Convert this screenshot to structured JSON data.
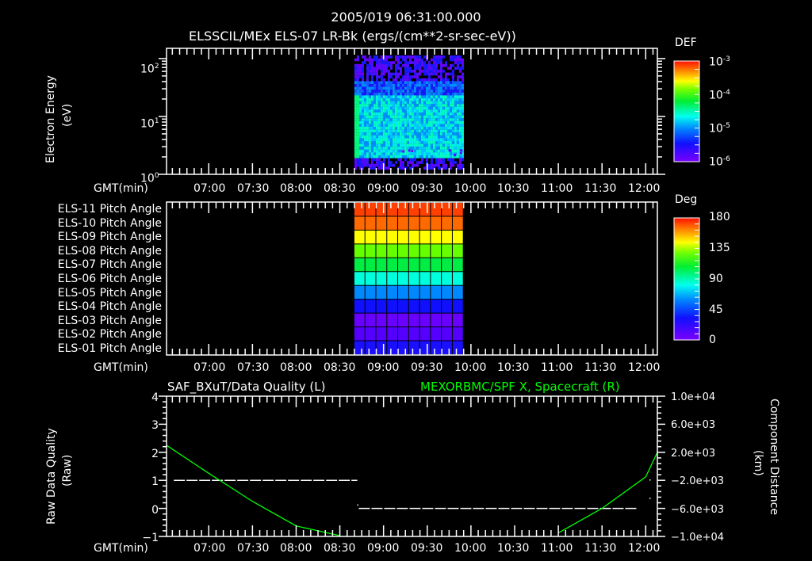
{
  "header": {
    "timestamp": "2005/019 06:31:00.000",
    "title": "ELSSCIL/MEx ELS-07 LR-Bk  (ergs/(cm**2-sr-sec-eV))"
  },
  "chart_data": [
    {
      "type": "heatmap",
      "title": "ELSSCIL/MEx ELS-07 LR-Bk  (ergs/(cm**2-sr-sec-eV))",
      "xlabel": "GMT(min)",
      "ylabel": "Electron Energy (eV)",
      "yscale": "log",
      "ylim": [
        1,
        150
      ],
      "yticks": [
        "10^0",
        "10^1",
        "10^2"
      ],
      "xticks": [
        "07:00",
        "07:30",
        "08:00",
        "08:30",
        "09:00",
        "09:30",
        "10:00",
        "10:30",
        "11:00",
        "11:30",
        "12:00"
      ],
      "data_time_range": [
        "08:40",
        "09:55"
      ],
      "data_energy_range_eV": [
        2.5,
        150
      ],
      "colorbar": {
        "label": "DEF",
        "scale": "log",
        "range": [
          1e-06,
          0.001
        ],
        "ticks": [
          "10^-3",
          "10^-4",
          "10^-5",
          "10^-6"
        ]
      },
      "dominant_level": "~1e-5 (cyan) between 3 and 30 eV, ~3e-6 (blue/violet) above 40 eV"
    },
    {
      "type": "heatmap",
      "title": "ELS Pitch Angle",
      "xlabel": "GMT(min)",
      "rows": [
        "ELS-11 Pitch Angle",
        "ELS-10 Pitch Angle",
        "ELS-09 Pitch Angle",
        "ELS-08 Pitch Angle",
        "ELS-07 Pitch Angle",
        "ELS-06 Pitch Angle",
        "ELS-05 Pitch Angle",
        "ELS-04 Pitch Angle",
        "ELS-03 Pitch Angle",
        "ELS-02 Pitch Angle",
        "ELS-01 Pitch Angle"
      ],
      "row_values_deg": [
        170,
        160,
        135,
        115,
        100,
        75,
        55,
        30,
        20,
        15,
        25
      ],
      "row_colors": [
        "#ff4000",
        "#ff6a00",
        "#ffff00",
        "#66ff00",
        "#00ee44",
        "#00ffdd",
        "#0088ff",
        "#1010ff",
        "#6a00ff",
        "#5500ff",
        "#1a10ff"
      ],
      "data_time_range": [
        "08:40",
        "09:55"
      ],
      "n_time_bins": 10,
      "colorbar": {
        "label": "Deg",
        "range": [
          0,
          180
        ],
        "ticks": [
          "180",
          "135",
          "90",
          "45",
          "0"
        ]
      },
      "xticks": [
        "07:00",
        "07:30",
        "08:00",
        "08:30",
        "09:00",
        "09:30",
        "10:00",
        "10:30",
        "11:00",
        "11:30",
        "12:00"
      ]
    },
    {
      "type": "line",
      "title_left": "SAF_BXuT/Data Quality (L)",
      "title_right": "MEXORBMC/SPF X, Spacecraft (R)",
      "xlabel": "GMT(min)",
      "ylabel_left": "Raw Data Quality (Raw)",
      "ylabel_right": "Component Distance (km)",
      "ylim_left": [
        -1,
        4
      ],
      "yticks_left": [
        "4",
        "3",
        "2",
        "1",
        "0",
        "-1"
      ],
      "ylim_right": [
        -10000,
        10000
      ],
      "yticks_right": [
        "1.0e+04",
        "6.0e+03",
        "2.0e+03",
        "-2.0e+03",
        "-6.0e+03",
        "-1.0e+04"
      ],
      "xticks": [
        "07:00",
        "07:30",
        "08:00",
        "08:30",
        "09:00",
        "09:30",
        "10:00",
        "10:30",
        "11:00",
        "11:30",
        "12:00"
      ],
      "series": [
        {
          "name": "SAF_BXuT/Data Quality",
          "axis": "left",
          "color": "#ffffff",
          "style": "dashed",
          "x": [
            "06:36",
            "08:42",
            "08:43",
            "09:55",
            "12:00"
          ],
          "y": [
            1,
            1,
            0,
            0,
            0
          ],
          "notes": "Value 1 from ~06:36 to ~08:42, then 0 from ~08:43 to ~12:00"
        },
        {
          "name": "MEXORBMC/SPF X, Spacecraft",
          "axis": "right",
          "color": "#00ff00",
          "x": [
            "06:31",
            "07:00",
            "07:30",
            "08:00",
            "08:30",
            "09:00",
            "10:30",
            "11:00",
            "11:30",
            "12:00",
            "12:05"
          ],
          "y": [
            3000,
            -1000,
            -5000,
            -8500,
            -10000,
            null,
            null,
            -9500,
            -6000,
            -1500,
            2000
          ]
        }
      ]
    }
  ],
  "panel1": {
    "ylabel_line1": "Electron Energy",
    "ylabel_line2": "(eV)",
    "ytick_labels": [
      {
        "base": "10",
        "exp": "2"
      },
      {
        "base": "10",
        "exp": "1"
      },
      {
        "base": "10",
        "exp": "0"
      }
    ],
    "xaxis_label": "GMT(min)",
    "cbar_title": "DEF",
    "cbar_labels": [
      {
        "base": "10",
        "exp": "-3"
      },
      {
        "base": "10",
        "exp": "-4"
      },
      {
        "base": "10",
        "exp": "-5"
      },
      {
        "base": "10",
        "exp": "-6"
      }
    ]
  },
  "panel2": {
    "row_labels": [
      "ELS-11 Pitch Angle",
      "ELS-10 Pitch Angle",
      "ELS-09 Pitch Angle",
      "ELS-08 Pitch Angle",
      "ELS-07 Pitch Angle",
      "ELS-06 Pitch Angle",
      "ELS-05 Pitch Angle",
      "ELS-04 Pitch Angle",
      "ELS-03 Pitch Angle",
      "ELS-02 Pitch Angle",
      "ELS-01 Pitch Angle"
    ],
    "xaxis_label": "GMT(min)",
    "cbar_title": "Deg",
    "cbar_labels": [
      "180",
      "135",
      "90",
      "45",
      "0"
    ]
  },
  "panel3": {
    "title_left": "SAF_BXuT/Data Quality (L)",
    "title_right": "MEXORBMC/SPF X, Spacecraft (R)",
    "ylabel_left_line1": "Raw Data Quality",
    "ylabel_left_line2": "(Raw)",
    "ylabel_right_line1": "Component Distance",
    "ylabel_right_line2": "(km)",
    "yticks_left": [
      "4",
      "3",
      "2",
      "1",
      "0",
      "−1"
    ],
    "yticks_right": [
      "1.0e+04",
      "6.0e+03",
      "2.0e+03",
      "−2.0e+03",
      "−6.0e+03",
      "−1.0e+04"
    ],
    "xaxis_label": "GMT(min)"
  },
  "xticks": [
    "07:00",
    "07:30",
    "08:00",
    "08:30",
    "09:00",
    "09:30",
    "10:00",
    "10:30",
    "11:00",
    "11:30",
    "12:00"
  ],
  "colors": {
    "background": "#000000",
    "axes": "#ffffff",
    "green_series": "#00ff00"
  }
}
